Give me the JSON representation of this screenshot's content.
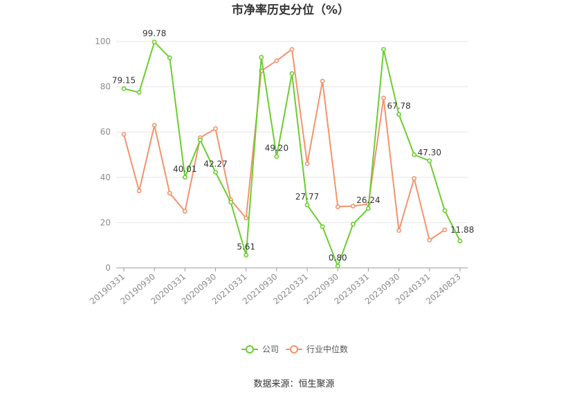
{
  "chart_data": {
    "type": "line",
    "title": "市净率历史分位（%）",
    "xlabel": "",
    "ylabel": "",
    "ylim": [
      0,
      100
    ],
    "yticks": [
      0,
      20,
      40,
      60,
      80,
      100
    ],
    "grid": true,
    "legend_position": "bottom",
    "x": [
      "20190331",
      "20190630",
      "20190930",
      "20191231",
      "20200331",
      "20200630",
      "20200930",
      "20201231",
      "20210331",
      "20210630",
      "20210930",
      "20211231",
      "20220331",
      "20220630",
      "20220930",
      "20221231",
      "20230331",
      "20230630",
      "20230930",
      "20231231",
      "20240331",
      "20240630",
      "20240823"
    ],
    "xtick_labels": [
      "20190331",
      "20190930",
      "20200331",
      "20200930",
      "20210331",
      "20210930",
      "20220331",
      "20220930",
      "20230331",
      "20230930",
      "20240331",
      "20240823"
    ],
    "series": [
      {
        "name": "公司",
        "color": "#6acd2e",
        "values": [
          79.15,
          77.5,
          99.78,
          92.8,
          40.01,
          56.5,
          42.27,
          29.0,
          5.61,
          93.0,
          49.2,
          85.8,
          27.77,
          18.2,
          0.8,
          19.3,
          26.24,
          96.5,
          67.78,
          50.0,
          47.3,
          25.3,
          11.88
        ],
        "labels": {
          "0": "79.15",
          "2": "99.78",
          "4": "40.01",
          "6": "42.27",
          "8": "5.61",
          "10": "49.20",
          "12": "27.77",
          "14": "0.80",
          "16": "26.24",
          "18": "67.78",
          "20": "47.30",
          "22": "11.88"
        }
      },
      {
        "name": "行业中位数",
        "color": "#f4926a",
        "values": [
          59.0,
          34.0,
          63.0,
          33.0,
          25.0,
          57.5,
          61.5,
          30.0,
          22.0,
          87.0,
          91.5,
          96.5,
          46.0,
          82.5,
          27.0,
          27.3,
          28.2,
          75.0,
          16.5,
          39.5,
          12.3,
          16.8,
          null
        ]
      }
    ]
  },
  "source_text": "数据来源：恒生聚源"
}
